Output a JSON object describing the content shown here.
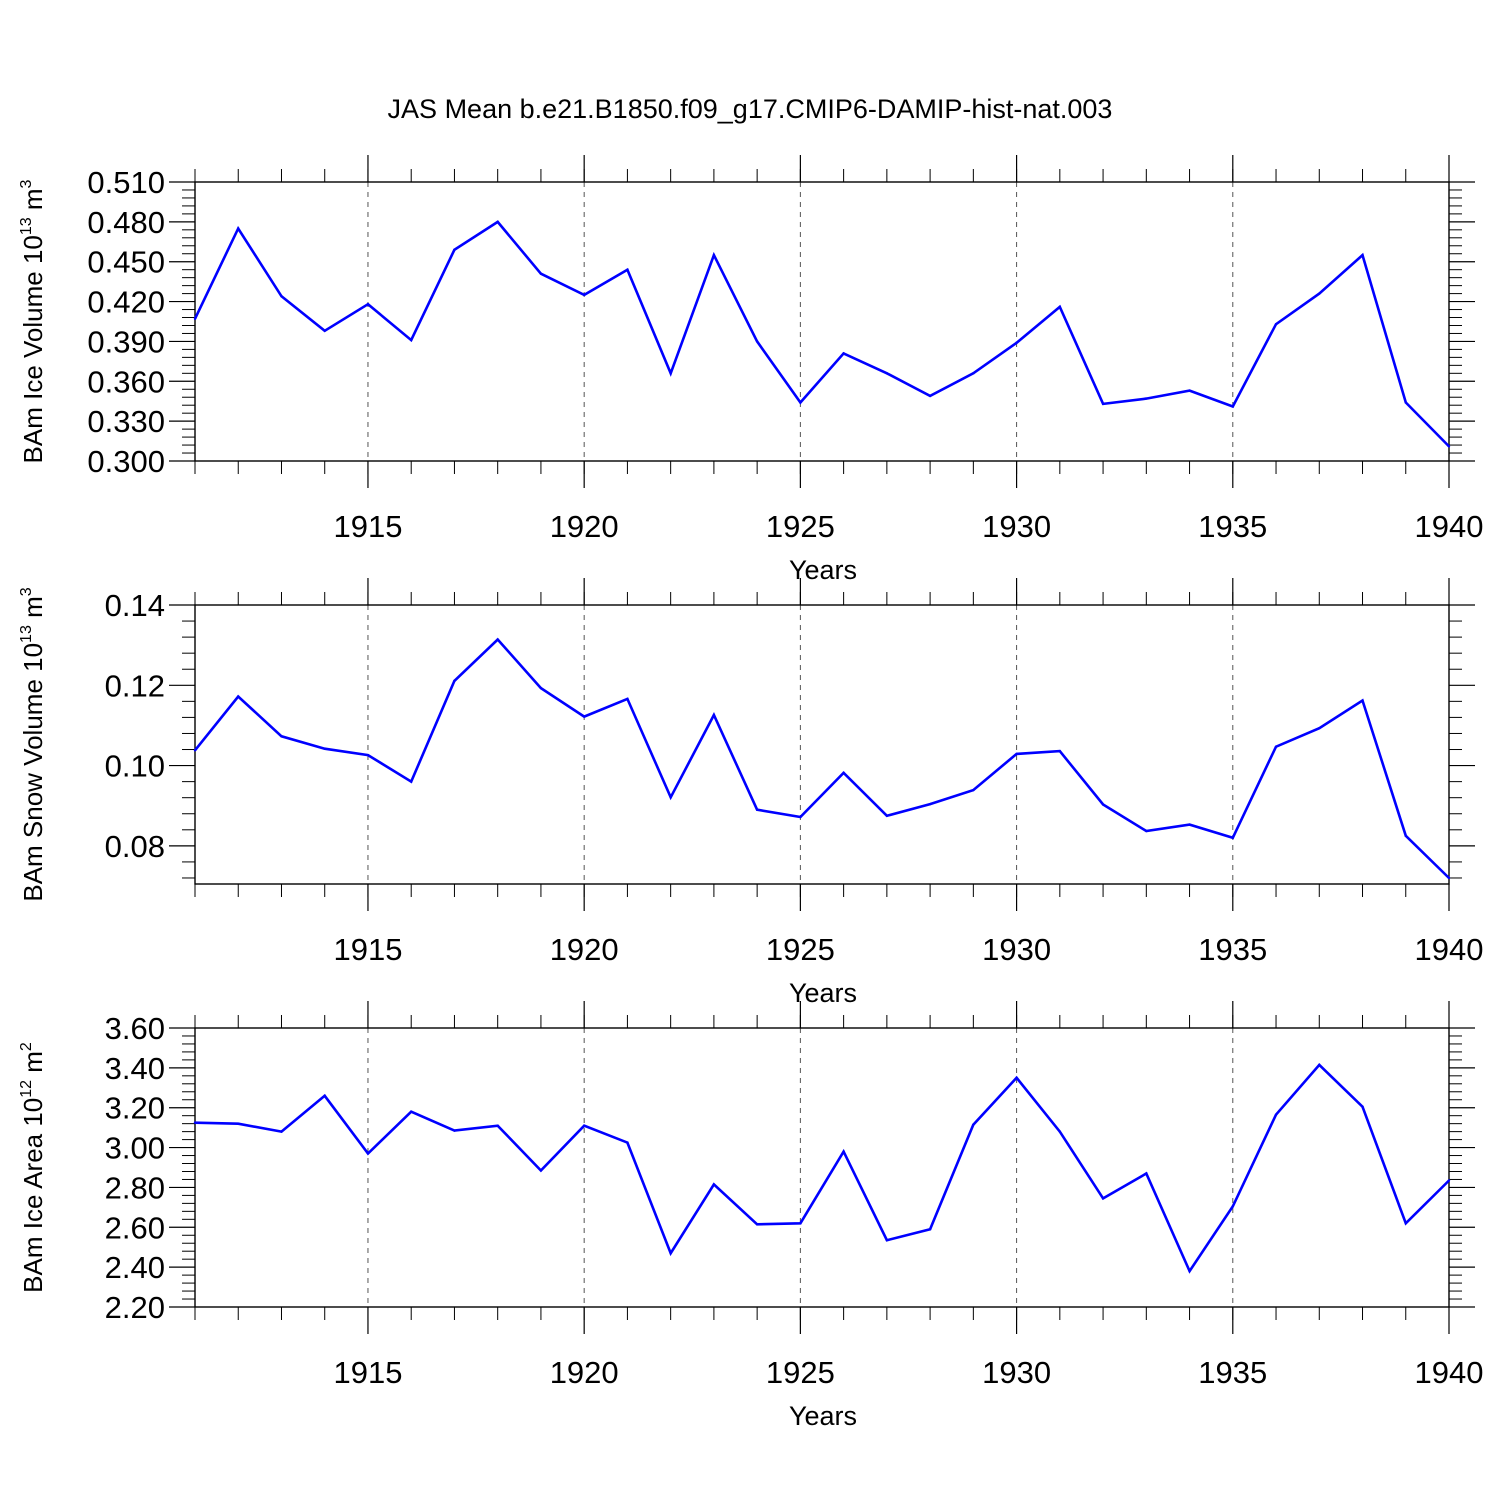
{
  "title": "JAS Mean b.e21.B1850.f09_g17.CMIP6-DAMIP-hist-nat.003",
  "colors": {
    "series": "#0000ff",
    "axis": "#000000",
    "grid": "#555555"
  },
  "chart_data": [
    {
      "type": "line",
      "title": "JAS Mean b.e21.B1850.f09_g17.CMIP6-DAMIP-hist-nat.003",
      "xlabel": "Years",
      "ylabel": {
        "prefix": "BAm Ice Volume 10",
        "exp": "13",
        "unit": " m",
        "unit_exp": "3"
      },
      "xlim": [
        1911,
        1940
      ],
      "ylim": [
        0.3,
        0.51
      ],
      "xticks": [
        1915,
        1920,
        1925,
        1930,
        1935,
        1940
      ],
      "yticks": [
        "0.300",
        "0.330",
        "0.360",
        "0.390",
        "0.420",
        "0.450",
        "0.480",
        "0.510"
      ],
      "grid": "vertical dashed at major x ticks",
      "x": [
        1911,
        1912,
        1913,
        1914,
        1915,
        1916,
        1917,
        1918,
        1919,
        1920,
        1921,
        1922,
        1923,
        1924,
        1925,
        1926,
        1927,
        1928,
        1929,
        1930,
        1931,
        1932,
        1933,
        1934,
        1935,
        1936,
        1937,
        1938,
        1939,
        1940
      ],
      "series": [
        {
          "values": [
            0.407,
            0.475,
            0.424,
            0.398,
            0.418,
            0.391,
            0.459,
            0.48,
            0.441,
            0.425,
            0.444,
            0.366,
            0.455,
            0.39,
            0.344,
            0.381,
            0.366,
            0.349,
            0.366,
            0.389,
            0.416,
            0.343,
            0.347,
            0.353,
            0.341,
            0.403,
            0.426,
            0.455,
            0.344,
            0.311
          ]
        }
      ]
    },
    {
      "type": "line",
      "xlabel": "Years",
      "ylabel": {
        "prefix": "BAm Snow Volume 10",
        "exp": "13",
        "unit": " m",
        "unit_exp": "3"
      },
      "xlim": [
        1911,
        1940
      ],
      "ylim": [
        0.0705,
        0.14
      ],
      "xticks": [
        1915,
        1920,
        1925,
        1930,
        1935,
        1940
      ],
      "yticks": [
        "0.08",
        "0.10",
        "0.12",
        "0.14"
      ],
      "grid": "vertical dashed at major x ticks",
      "x": [
        1911,
        1912,
        1913,
        1914,
        1915,
        1916,
        1917,
        1918,
        1919,
        1920,
        1921,
        1922,
        1923,
        1924,
        1925,
        1926,
        1927,
        1928,
        1929,
        1930,
        1931,
        1932,
        1933,
        1934,
        1935,
        1936,
        1937,
        1938,
        1939,
        1940
      ],
      "series": [
        {
          "values": [
            0.1038,
            0.1172,
            0.1073,
            0.1042,
            0.1026,
            0.096,
            0.1211,
            0.1314,
            0.1193,
            0.1122,
            0.1166,
            0.0921,
            0.1126,
            0.089,
            0.0872,
            0.0982,
            0.0875,
            0.0904,
            0.0939,
            0.1029,
            0.1036,
            0.0903,
            0.0837,
            0.0853,
            0.082,
            0.1047,
            0.1093,
            0.1162,
            0.0825,
            0.072
          ]
        }
      ]
    },
    {
      "type": "line",
      "xlabel": "Years",
      "ylabel": {
        "prefix": "BAm Ice Area 10",
        "exp": "12",
        "unit": " m",
        "unit_exp": "2"
      },
      "xlim": [
        1911,
        1940
      ],
      "ylim": [
        2.2,
        3.6
      ],
      "xticks": [
        1915,
        1920,
        1925,
        1930,
        1935,
        1940
      ],
      "yticks": [
        "2.20",
        "2.40",
        "2.60",
        "2.80",
        "3.00",
        "3.20",
        "3.40",
        "3.60"
      ],
      "grid": "vertical dashed at major x ticks",
      "x": [
        1911,
        1912,
        1913,
        1914,
        1915,
        1916,
        1917,
        1918,
        1919,
        1920,
        1921,
        1922,
        1923,
        1924,
        1925,
        1926,
        1927,
        1928,
        1929,
        1930,
        1931,
        1932,
        1933,
        1934,
        1935,
        1936,
        1937,
        1938,
        1939,
        1940
      ],
      "series": [
        {
          "values": [
            3.125,
            3.12,
            3.08,
            3.26,
            2.97,
            3.18,
            3.085,
            3.11,
            2.885,
            3.11,
            3.025,
            2.47,
            2.815,
            2.615,
            2.62,
            2.98,
            2.535,
            2.59,
            3.115,
            3.35,
            3.08,
            2.745,
            2.87,
            2.38,
            2.705,
            3.165,
            3.415,
            3.205,
            2.62,
            2.835
          ]
        }
      ]
    }
  ]
}
